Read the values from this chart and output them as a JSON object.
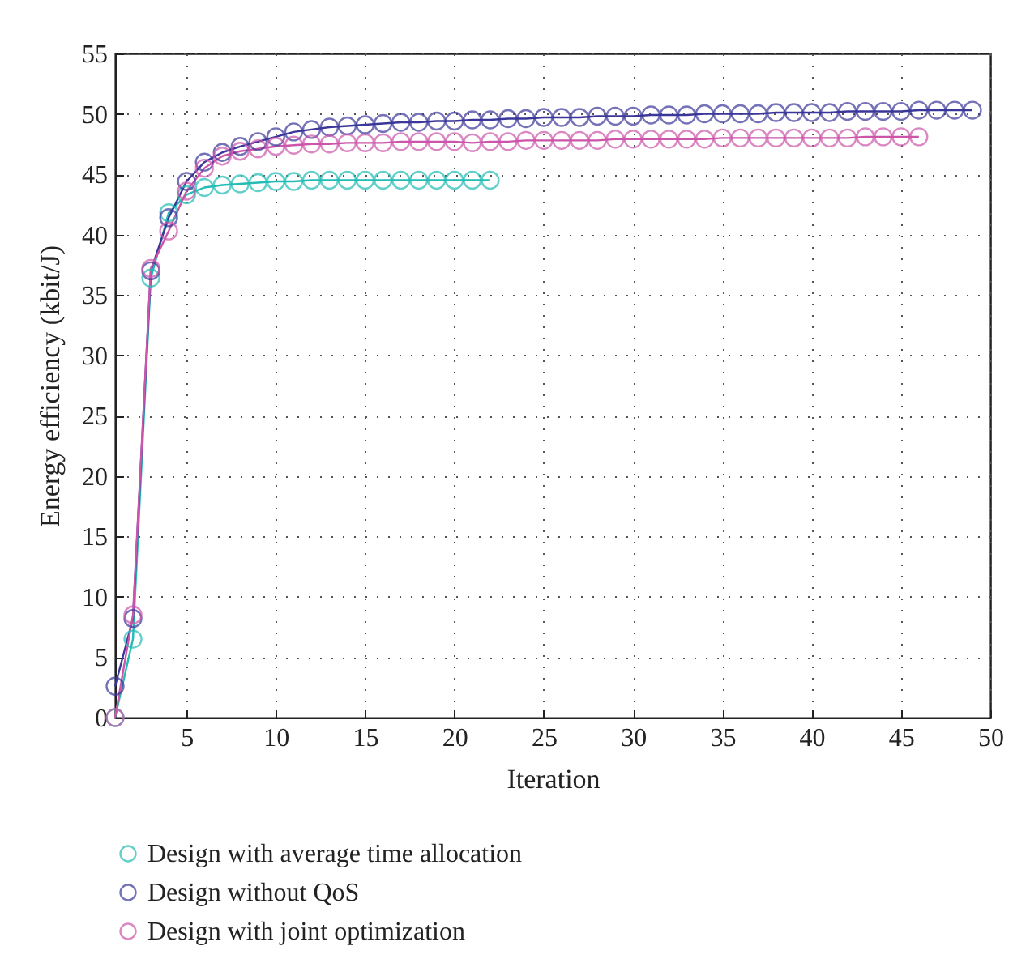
{
  "chart_data": {
    "type": "line",
    "xlabel": "Iteration",
    "ylabel": "Energy efficiency (kbit/J)",
    "xlim": [
      1,
      50
    ],
    "xticks": [
      5,
      10,
      15,
      20,
      25,
      30,
      35,
      40,
      45,
      50
    ],
    "ylim": [
      0,
      55
    ],
    "yticks": [
      0,
      5,
      10,
      15,
      20,
      25,
      30,
      35,
      40,
      45,
      50,
      55
    ],
    "grid": true,
    "legend": "bottom",
    "marker": "circle",
    "line_style": "solid",
    "series": [
      {
        "name": "Design with average time allocation",
        "color": "#22bcb4",
        "x": [
          1,
          2,
          3,
          4,
          5,
          6,
          7,
          8,
          9,
          10,
          11,
          12,
          13,
          14,
          15,
          16,
          17,
          18,
          19,
          20,
          21,
          22
        ],
        "values": [
          0,
          6.5,
          36.4,
          41.8,
          43.3,
          43.9,
          44.1,
          44.2,
          44.3,
          44.4,
          44.4,
          44.5,
          44.5,
          44.5,
          44.5,
          44.5,
          44.5,
          44.5,
          44.5,
          44.5,
          44.5,
          44.5
        ]
      },
      {
        "name": "Design without QoS",
        "color": "#3b379a",
        "x": [
          1,
          2,
          3,
          4,
          5,
          6,
          7,
          8,
          9,
          10,
          11,
          12,
          13,
          14,
          15,
          16,
          17,
          18,
          19,
          20,
          21,
          22,
          23,
          24,
          25,
          26,
          27,
          28,
          29,
          30,
          31,
          32,
          33,
          34,
          35,
          36,
          37,
          38,
          39,
          40,
          41,
          42,
          43,
          44,
          45,
          46,
          47,
          48,
          49
        ],
        "values": [
          2.6,
          8.2,
          37,
          41.4,
          44.4,
          46,
          46.8,
          47.3,
          47.7,
          48.1,
          48.5,
          48.7,
          48.9,
          49,
          49.1,
          49.2,
          49.3,
          49.3,
          49.4,
          49.4,
          49.5,
          49.5,
          49.6,
          49.6,
          49.7,
          49.7,
          49.7,
          49.8,
          49.8,
          49.8,
          49.9,
          49.9,
          49.9,
          50,
          50,
          50,
          50,
          50.1,
          50.1,
          50.1,
          50.1,
          50.2,
          50.2,
          50.2,
          50.2,
          50.3,
          50.3,
          50.3,
          50.3
        ]
      },
      {
        "name": "Design with joint optimization",
        "color": "#cc55aa",
        "x": [
          1,
          2,
          3,
          4,
          5,
          6,
          7,
          8,
          9,
          10,
          11,
          12,
          13,
          14,
          15,
          16,
          17,
          18,
          19,
          20,
          21,
          22,
          23,
          24,
          25,
          26,
          27,
          28,
          29,
          30,
          31,
          32,
          33,
          34,
          35,
          36,
          37,
          38,
          39,
          40,
          41,
          42,
          43,
          44,
          45,
          46
        ],
        "values": [
          0,
          8.5,
          37.2,
          40.3,
          43.6,
          45.5,
          46.5,
          46.9,
          47.1,
          47.3,
          47.4,
          47.5,
          47.5,
          47.6,
          47.6,
          47.6,
          47.7,
          47.7,
          47.7,
          47.7,
          47.6,
          47.7,
          47.7,
          47.8,
          47.8,
          47.8,
          47.8,
          47.8,
          47.9,
          47.9,
          47.9,
          47.9,
          47.9,
          47.9,
          48,
          48,
          48,
          48,
          48,
          48,
          48,
          48,
          48.1,
          48.1,
          48.1,
          48.1
        ]
      }
    ]
  }
}
